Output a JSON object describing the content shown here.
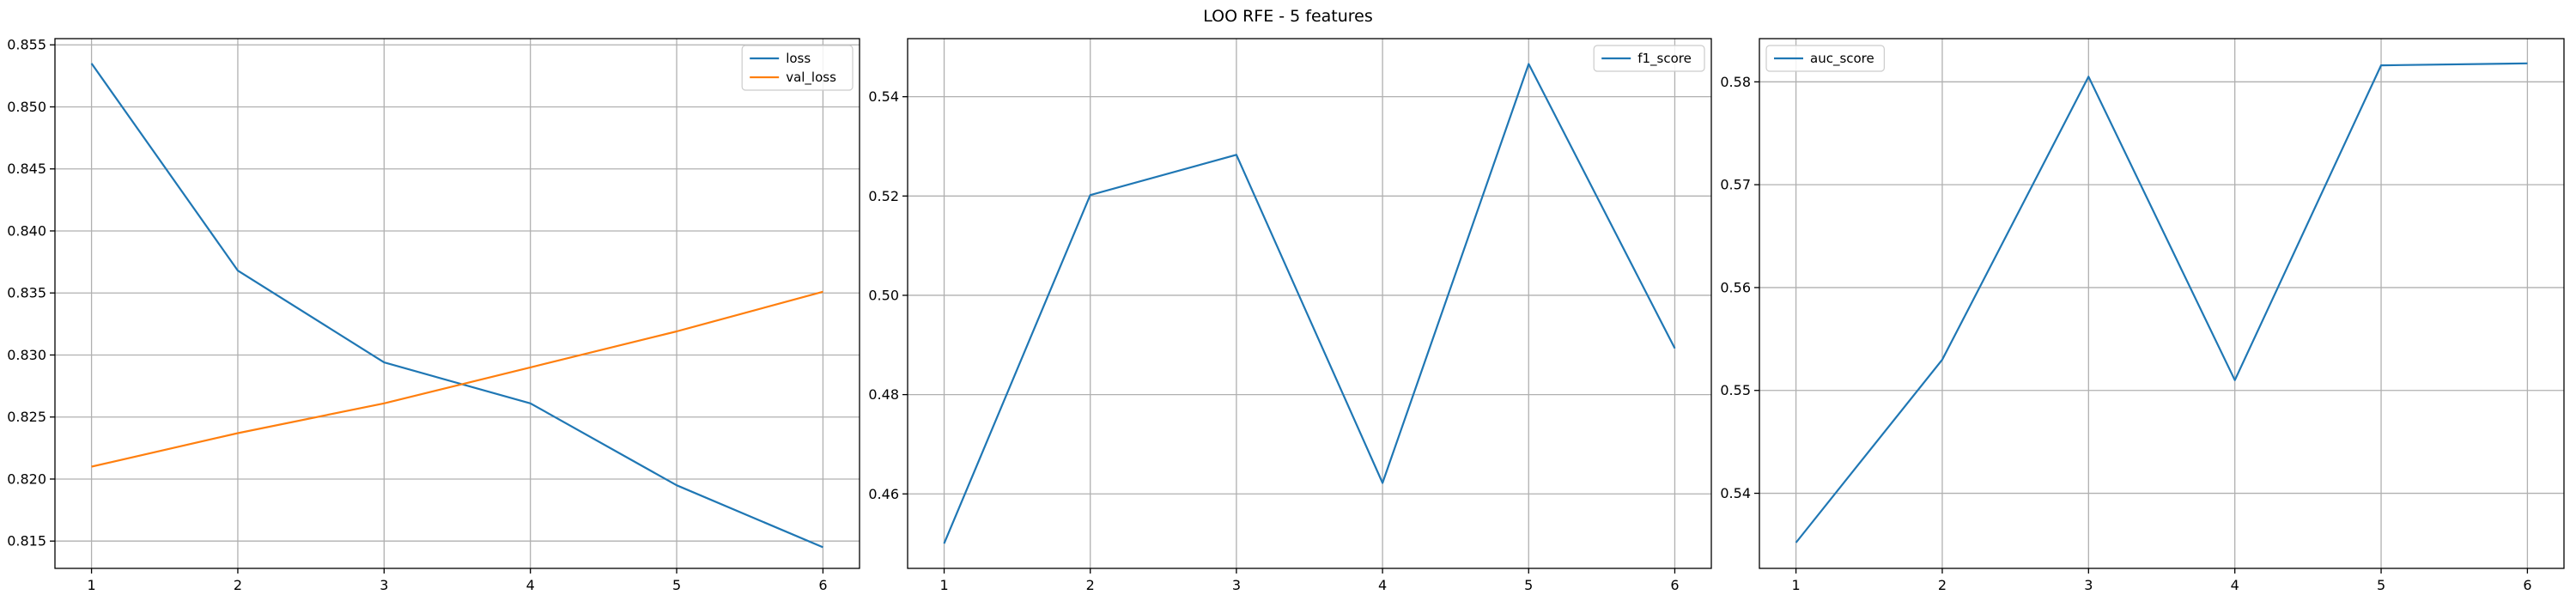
{
  "figure": {
    "suptitle": "LOO RFE - 5 features"
  },
  "chart_data": [
    {
      "type": "line",
      "x": [
        1,
        2,
        3,
        4,
        5,
        6
      ],
      "xticks": [
        1,
        2,
        3,
        4,
        5,
        6
      ],
      "ylim": [
        0.8128,
        0.8555
      ],
      "yticks": [
        0.815,
        0.82,
        0.825,
        0.83,
        0.835,
        0.84,
        0.845,
        0.85,
        0.855
      ],
      "ytick_decimals": 3,
      "grid": true,
      "legend_loc": "upper right",
      "title": "",
      "xlabel": "",
      "ylabel": "",
      "series": [
        {
          "name": "loss",
          "color": "#1f77b4",
          "values": [
            0.8535,
            0.8368,
            0.8294,
            0.8261,
            0.8195,
            0.8145
          ]
        },
        {
          "name": "val_loss",
          "color": "#ff7f0e",
          "values": [
            0.821,
            0.8237,
            0.8261,
            0.829,
            0.8319,
            0.8351
          ]
        }
      ]
    },
    {
      "type": "line",
      "x": [
        1,
        2,
        3,
        4,
        5,
        6
      ],
      "xticks": [
        1,
        2,
        3,
        4,
        5,
        6
      ],
      "ylim": [
        0.445,
        0.5517
      ],
      "yticks": [
        0.46,
        0.48,
        0.5,
        0.52,
        0.54
      ],
      "ytick_decimals": 2,
      "grid": true,
      "legend_loc": "upper right",
      "title": "",
      "xlabel": "",
      "ylabel": "",
      "series": [
        {
          "name": "f1_score",
          "color": "#1f77b4",
          "values": [
            0.45,
            0.5202,
            0.5283,
            0.4622,
            0.5466,
            0.4893
          ]
        }
      ]
    },
    {
      "type": "line",
      "x": [
        1,
        2,
        3,
        4,
        5,
        6
      ],
      "xticks": [
        1,
        2,
        3,
        4,
        5,
        6
      ],
      "ylim": [
        0.5327,
        0.5842
      ],
      "yticks": [
        0.54,
        0.55,
        0.56,
        0.57,
        0.58
      ],
      "ytick_decimals": 2,
      "grid": true,
      "legend_loc": "upper left",
      "title": "",
      "xlabel": "",
      "ylabel": "",
      "series": [
        {
          "name": "auc_score",
          "color": "#1f77b4",
          "values": [
            0.5352,
            0.553,
            0.5805,
            0.551,
            0.5816,
            0.5818
          ]
        }
      ]
    }
  ]
}
